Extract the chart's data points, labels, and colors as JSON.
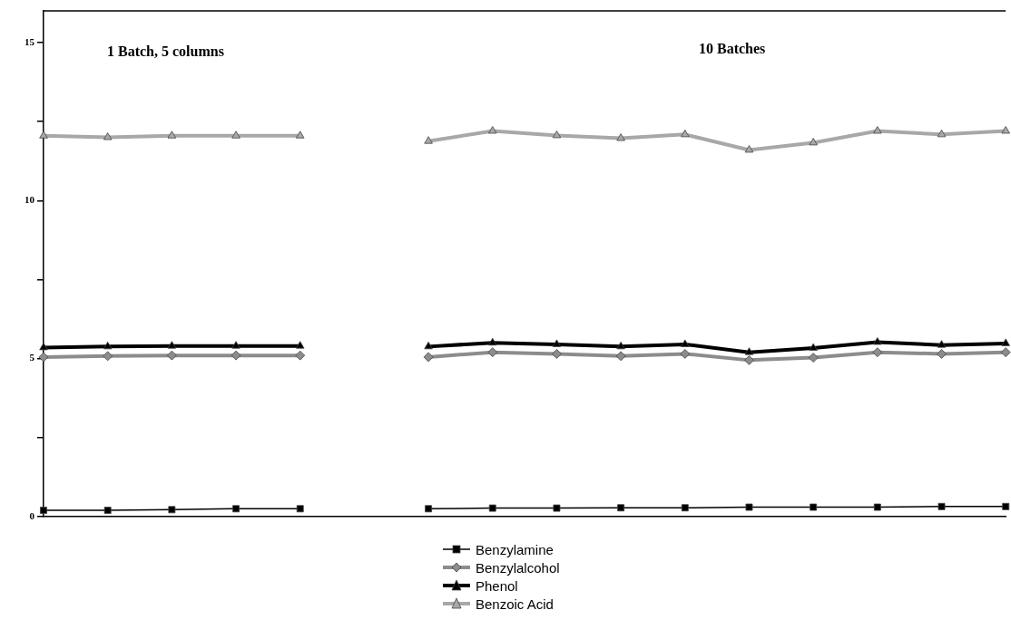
{
  "chart_data": {
    "type": "line",
    "categories": [
      null,
      null,
      null,
      null,
      null,
      null,
      null,
      null,
      null,
      null,
      null,
      null,
      null,
      null,
      null,
      null
    ],
    "ylim": [
      0,
      16
    ],
    "yticks": [
      0,
      {
        "value": 2.5,
        "label": null
      },
      5,
      {
        "value": 7.5,
        "label": null
      },
      10,
      {
        "value": 12.5,
        "label": null
      },
      15
    ],
    "tick_labels": "y",
    "legend": "bottom",
    "line_style": "solid",
    "annotations": [
      "1 Batch, 5 columns",
      "10 Batches"
    ],
    "series": [
      {
        "name": "Benzylamine",
        "color": "#000000",
        "marker": "square",
        "values": [
          0.2,
          0.2,
          0.22,
          0.25,
          0.25,
          null,
          null,
          null,
          null,
          null,
          null,
          null,
          null,
          null,
          null,
          null
        ]
      },
      {
        "name": "Benzylalcohol",
        "color": "#8c8c8c",
        "marker": "diamond",
        "values": [
          5.05,
          5.08,
          5.1,
          5.1,
          5.1,
          null,
          null,
          null,
          null,
          null,
          null,
          null,
          null,
          null,
          null,
          null
        ]
      },
      {
        "name": "Phenol",
        "color": "#000000",
        "marker": "triangle",
        "values": [
          5.35,
          5.38,
          5.4,
          5.4,
          5.4,
          null,
          null,
          null,
          null,
          null,
          null,
          null,
          null,
          null,
          null,
          null
        ]
      },
      {
        "name": "Benzoic Acid",
        "color": "#a8a8a8",
        "marker": "triangle",
        "values": [
          12.05,
          12.0,
          12.05,
          12.05,
          12.05,
          null,
          null,
          null,
          null,
          null,
          null,
          null,
          null,
          null,
          null,
          null
        ]
      },
      {
        "color": "#000000",
        "marker": "square",
        "values": [
          null,
          null,
          null,
          null,
          null,
          null,
          0.25,
          0.27,
          0.27,
          0.28,
          0.28,
          0.3,
          0.3,
          0.3,
          0.32,
          0.32
        ]
      },
      {
        "color": "#8c8c8c",
        "marker": "diamond",
        "values": [
          null,
          null,
          null,
          null,
          null,
          null,
          5.05,
          5.2,
          5.15,
          5.08,
          5.15,
          4.95,
          5.03,
          5.2,
          5.15,
          5.2
        ]
      },
      {
        "color": "#000000",
        "marker": "triangle",
        "values": [
          null,
          null,
          null,
          null,
          null,
          null,
          5.38,
          5.5,
          5.45,
          5.38,
          5.45,
          5.2,
          5.33,
          5.52,
          5.43,
          5.48
        ]
      },
      {
        "color": "#a8a8a8",
        "marker": "triangle",
        "values": [
          null,
          null,
          null,
          null,
          null,
          null,
          11.88,
          12.2,
          12.06,
          11.97,
          12.09,
          11.6,
          11.83,
          12.2,
          12.09,
          12.2
        ]
      }
    ]
  }
}
